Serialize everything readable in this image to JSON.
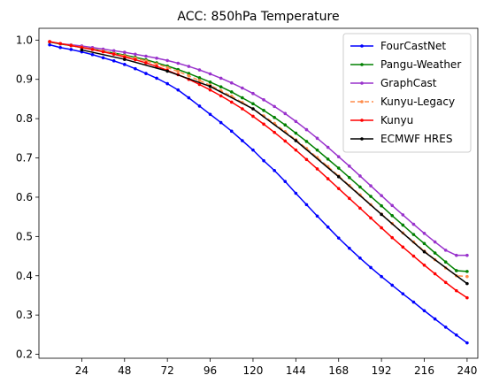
{
  "chart_data": {
    "type": "line",
    "title": "ACC: 850hPa Temperature",
    "xlabel": "",
    "ylabel": "",
    "xlim": [
      0,
      246
    ],
    "ylim": [
      0.19,
      1.03
    ],
    "xticks": [
      24,
      48,
      72,
      96,
      120,
      144,
      168,
      192,
      216,
      240
    ],
    "yticks": [
      0.2,
      0.3,
      0.4,
      0.5,
      0.6,
      0.7,
      0.8,
      0.9,
      1.0
    ],
    "yticklabels": [
      "0.2",
      "0.3",
      "0.4",
      "0.5",
      "0.6",
      "0.7",
      "0.8",
      "0.9",
      "1.0"
    ],
    "grid": false,
    "legend_position": "top-right",
    "series": [
      {
        "name": "FourCastNet",
        "color": "#0000ff",
        "linestyle": "solid",
        "marker": "dot",
        "x": [
          6,
          12,
          18,
          24,
          30,
          36,
          42,
          48,
          54,
          60,
          66,
          72,
          78,
          84,
          90,
          96,
          102,
          108,
          114,
          120,
          126,
          132,
          138,
          144,
          150,
          156,
          162,
          168,
          174,
          180,
          186,
          192,
          198,
          204,
          210,
          216,
          222,
          228,
          234,
          240
        ],
        "y": [
          0.988,
          0.981,
          0.976,
          0.97,
          0.963,
          0.955,
          0.947,
          0.938,
          0.927,
          0.915,
          0.903,
          0.889,
          0.873,
          0.853,
          0.832,
          0.811,
          0.79,
          0.768,
          0.744,
          0.72,
          0.693,
          0.668,
          0.64,
          0.61,
          0.581,
          0.552,
          0.524,
          0.496,
          0.47,
          0.445,
          0.421,
          0.398,
          0.376,
          0.354,
          0.333,
          0.311,
          0.29,
          0.269,
          0.249,
          0.229
        ]
      },
      {
        "name": "Pangu-Weather",
        "color": "#008000",
        "linestyle": "solid",
        "marker": "dot",
        "x": [
          6,
          12,
          18,
          24,
          30,
          36,
          42,
          48,
          54,
          60,
          66,
          72,
          78,
          84,
          90,
          96,
          102,
          108,
          114,
          120,
          126,
          132,
          138,
          144,
          150,
          156,
          162,
          168,
          174,
          180,
          186,
          192,
          198,
          204,
          210,
          216,
          222,
          228,
          234,
          240
        ],
        "y": [
          0.995,
          0.99,
          0.986,
          0.981,
          0.977,
          0.972,
          0.967,
          0.962,
          0.956,
          0.95,
          0.942,
          0.934,
          0.925,
          0.915,
          0.904,
          0.893,
          0.881,
          0.868,
          0.853,
          0.838,
          0.821,
          0.803,
          0.784,
          0.763,
          0.742,
          0.72,
          0.697,
          0.674,
          0.65,
          0.626,
          0.602,
          0.578,
          0.553,
          0.529,
          0.505,
          0.482,
          0.458,
          0.435,
          0.413,
          0.411
        ]
      },
      {
        "name": "GraphCast",
        "color": "#9932cc",
        "linestyle": "solid",
        "marker": "dot",
        "x": [
          6,
          12,
          18,
          24,
          30,
          36,
          42,
          48,
          54,
          60,
          66,
          72,
          78,
          84,
          90,
          96,
          102,
          108,
          114,
          120,
          126,
          132,
          138,
          144,
          150,
          156,
          162,
          168,
          174,
          180,
          186,
          192,
          198,
          204,
          210,
          216,
          222,
          228,
          234,
          240
        ],
        "y": [
          0.996,
          0.991,
          0.988,
          0.985,
          0.981,
          0.977,
          0.973,
          0.969,
          0.964,
          0.959,
          0.954,
          0.948,
          0.941,
          0.933,
          0.924,
          0.914,
          0.903,
          0.891,
          0.878,
          0.864,
          0.848,
          0.831,
          0.813,
          0.793,
          0.772,
          0.75,
          0.727,
          0.703,
          0.679,
          0.654,
          0.629,
          0.604,
          0.579,
          0.555,
          0.531,
          0.508,
          0.486,
          0.465,
          0.452,
          0.452
        ]
      },
      {
        "name": "Kunyu-Legacy",
        "color": "#ff8c4a",
        "linestyle": "dashed",
        "marker": "dot",
        "x": [
          6,
          12,
          18,
          24,
          30,
          36,
          42,
          48,
          54,
          60,
          66,
          72,
          78,
          84,
          90,
          96,
          102,
          108,
          114,
          120,
          126,
          132,
          138,
          144,
          150,
          156,
          162,
          168,
          174,
          180,
          186,
          192,
          198,
          204,
          210,
          216,
          222,
          228,
          234,
          240
        ],
        "y": [
          0.996,
          0.991,
          0.987,
          0.982,
          0.977,
          0.972,
          0.966,
          0.96,
          0.954,
          0.947,
          0.939,
          0.93,
          0.92,
          0.909,
          0.897,
          0.885,
          0.871,
          0.857,
          0.841,
          0.825,
          0.807,
          0.788,
          0.767,
          0.746,
          0.724,
          0.701,
          0.678,
          0.654,
          0.63,
          0.606,
          0.581,
          0.557,
          0.533,
          0.509,
          0.486,
          0.463,
          0.441,
          0.42,
          0.4,
          0.398
        ]
      },
      {
        "name": "Kunyu",
        "color": "#ff0000",
        "linestyle": "solid",
        "marker": "dot",
        "x": [
          6,
          12,
          18,
          24,
          30,
          36,
          42,
          48,
          54,
          60,
          66,
          72,
          78,
          84,
          90,
          96,
          102,
          108,
          114,
          120,
          126,
          132,
          138,
          144,
          150,
          156,
          162,
          168,
          174,
          180,
          186,
          192,
          198,
          204,
          210,
          216,
          222,
          228,
          234,
          240
        ],
        "y": [
          0.996,
          0.991,
          0.986,
          0.981,
          0.976,
          0.97,
          0.964,
          0.957,
          0.95,
          0.942,
          0.933,
          0.923,
          0.912,
          0.9,
          0.887,
          0.873,
          0.858,
          0.842,
          0.825,
          0.806,
          0.786,
          0.765,
          0.743,
          0.72,
          0.696,
          0.672,
          0.647,
          0.622,
          0.597,
          0.572,
          0.547,
          0.522,
          0.497,
          0.473,
          0.45,
          0.427,
          0.405,
          0.383,
          0.362,
          0.344
        ]
      },
      {
        "name": "ECMWF HRES",
        "color": "#000000",
        "linestyle": "solid",
        "marker": "dot",
        "x": [
          24,
          48,
          72,
          96,
          120,
          144,
          168,
          192,
          216,
          240
        ],
        "y": [
          0.975,
          0.951,
          0.921,
          0.882,
          0.825,
          0.744,
          0.652,
          0.556,
          0.461,
          0.38
        ]
      }
    ]
  }
}
